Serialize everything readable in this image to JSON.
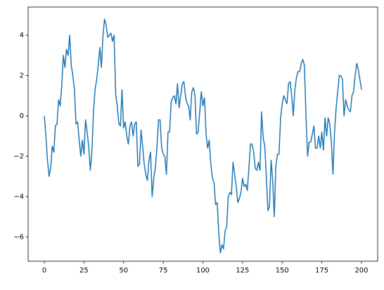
{
  "chart_data": {
    "type": "line",
    "x": [
      0,
      1,
      2,
      3,
      4,
      5,
      6,
      7,
      8,
      9,
      10,
      11,
      12,
      13,
      14,
      15,
      16,
      17,
      18,
      19,
      20,
      21,
      22,
      23,
      24,
      25,
      26,
      27,
      28,
      29,
      30,
      31,
      32,
      33,
      34,
      35,
      36,
      37,
      38,
      39,
      40,
      41,
      42,
      43,
      44,
      45,
      46,
      47,
      48,
      49,
      50,
      51,
      52,
      53,
      54,
      55,
      56,
      57,
      58,
      59,
      60,
      61,
      62,
      63,
      64,
      65,
      66,
      67,
      68,
      69,
      70,
      71,
      72,
      73,
      74,
      75,
      76,
      77,
      78,
      79,
      80,
      81,
      82,
      83,
      84,
      85,
      86,
      87,
      88,
      89,
      90,
      91,
      92,
      93,
      94,
      95,
      96,
      97,
      98,
      99,
      100,
      101,
      102,
      103,
      104,
      105,
      106,
      107,
      108,
      109,
      110,
      111,
      112,
      113,
      114,
      115,
      116,
      117,
      118,
      119,
      120,
      121,
      122,
      123,
      124,
      125,
      126,
      127,
      128,
      129,
      130,
      131,
      132,
      133,
      134,
      135,
      136,
      137,
      138,
      139,
      140,
      141,
      142,
      143,
      144,
      145,
      146,
      147,
      148,
      149,
      150,
      151,
      152,
      153,
      154,
      155,
      156,
      157,
      158,
      159,
      160,
      161,
      162,
      163,
      164,
      165,
      166,
      167,
      168,
      169,
      170,
      171,
      172,
      173,
      174,
      175,
      176,
      177,
      178,
      179,
      180,
      181,
      182,
      183,
      184,
      185,
      186,
      187,
      188,
      189,
      190,
      191,
      192,
      193,
      194,
      195,
      196,
      197,
      198,
      199,
      200
    ],
    "series": [
      {
        "color": "#1f77b4",
        "values": [
          0.0,
          -1.0,
          -2.2,
          -3.0,
          -2.6,
          -1.5,
          -1.8,
          -0.5,
          -0.4,
          0.8,
          0.5,
          1.5,
          3.0,
          2.4,
          3.3,
          3.0,
          4.0,
          2.5,
          2.0,
          1.3,
          -0.4,
          -0.3,
          -1.2,
          -2.0,
          -1.2,
          -1.9,
          -0.2,
          -0.8,
          -1.5,
          -2.7,
          -1.8,
          0.2,
          1.3,
          1.8,
          2.5,
          3.4,
          2.4,
          4.0,
          4.8,
          4.5,
          3.9,
          4.0,
          4.1,
          3.7,
          4.0,
          1.1,
          0.5,
          -0.4,
          -0.5,
          1.3,
          -0.6,
          -0.3,
          -1.0,
          -1.4,
          -0.5,
          -0.3,
          -1.0,
          -0.4,
          -0.3,
          -2.5,
          -2.4,
          -0.7,
          -1.5,
          -2.4,
          -2.9,
          -3.2,
          -2.2,
          -1.8,
          -4.0,
          -3.1,
          -2.6,
          -1.6,
          -0.2,
          -0.2,
          -1.6,
          -1.9,
          -2.0,
          -2.9,
          -0.8,
          -0.8,
          0.7,
          0.9,
          1.0,
          0.6,
          1.6,
          0.4,
          1.0,
          1.6,
          1.7,
          1.0,
          0.6,
          0.5,
          -0.2,
          1.2,
          1.4,
          1.0,
          -0.9,
          -0.8,
          0.2,
          1.2,
          0.5,
          0.9,
          -0.9,
          -1.6,
          -1.2,
          -2.4,
          -3.1,
          -3.3,
          -4.4,
          -4.3,
          -5.8,
          -6.8,
          -6.4,
          -6.6,
          -5.7,
          -5.5,
          -4.0,
          -3.8,
          -3.9,
          -2.3,
          -2.9,
          -3.5,
          -4.3,
          -4.1,
          -3.8,
          -3.1,
          -3.5,
          -3.4,
          -3.7,
          -2.6,
          -1.4,
          -1.4,
          -1.8,
          -2.6,
          -2.7,
          -2.3,
          -2.7,
          0.2,
          -1.1,
          -1.5,
          -3.0,
          -4.7,
          -4.5,
          -2.2,
          -3.2,
          -5.0,
          -2.5,
          -1.9,
          -1.9,
          -0.1,
          0.6,
          1.0,
          0.8,
          0.6,
          1.6,
          1.7,
          1.0,
          0.0,
          1.3,
          1.9,
          2.2,
          2.2,
          2.6,
          2.8,
          2.5,
          0.0,
          -2.0,
          -1.3,
          -1.3,
          -0.9,
          -0.5,
          -1.6,
          -1.6,
          -1.0,
          -1.6,
          -0.8,
          -1.7,
          -0.1,
          -1.0,
          -0.1,
          -0.4,
          -1.3,
          -2.9,
          -0.8,
          0.4,
          1.2,
          2.0,
          2.0,
          1.8,
          0.0,
          0.8,
          0.5,
          0.3,
          0.2,
          1.0,
          1.2,
          2.0,
          2.6,
          2.3,
          1.8,
          1.3
        ]
      }
    ],
    "xlim": [
      -10.2,
      210.2
    ],
    "ylim": [
      -7.21,
      5.4
    ],
    "xticks": [
      0,
      25,
      50,
      75,
      100,
      125,
      150,
      175,
      200
    ],
    "yticks": [
      {
        "value": -6,
        "label": "−6"
      },
      {
        "value": -4,
        "label": "−4"
      },
      {
        "value": -2,
        "label": "−2"
      },
      0,
      2,
      4
    ],
    "grid": false
  }
}
